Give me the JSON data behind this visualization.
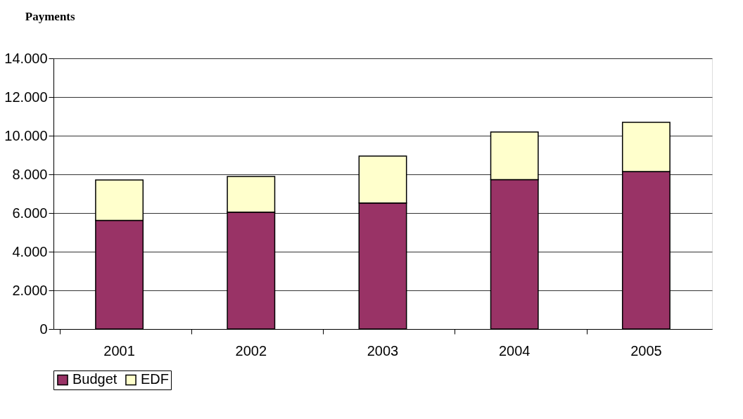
{
  "chart_data": {
    "type": "bar",
    "title": "Payments",
    "categories": [
      "2001",
      "2002",
      "2003",
      "2004",
      "2005"
    ],
    "stacked": true,
    "series": [
      {
        "name": "Budget",
        "color": "#993366",
        "values": [
          5620,
          6050,
          6520,
          7730,
          8150
        ]
      },
      {
        "name": "EDF",
        "color": "#ffffcc",
        "values": [
          2090,
          1840,
          2430,
          2460,
          2540
        ]
      }
    ],
    "ylim": [
      0,
      14000
    ],
    "yticks": [
      0,
      {
        "value": 2000,
        "label": "2.000"
      },
      {
        "value": 4000,
        "label": "4.000"
      },
      {
        "value": 6000,
        "label": "6.000"
      },
      {
        "value": 8000,
        "label": "8.000"
      },
      {
        "value": 10000,
        "label": "10.000"
      },
      {
        "value": 12000,
        "label": "12.000"
      },
      {
        "value": 14000,
        "label": "14.000"
      }
    ],
    "grid": "y",
    "legend": "bottom"
  }
}
